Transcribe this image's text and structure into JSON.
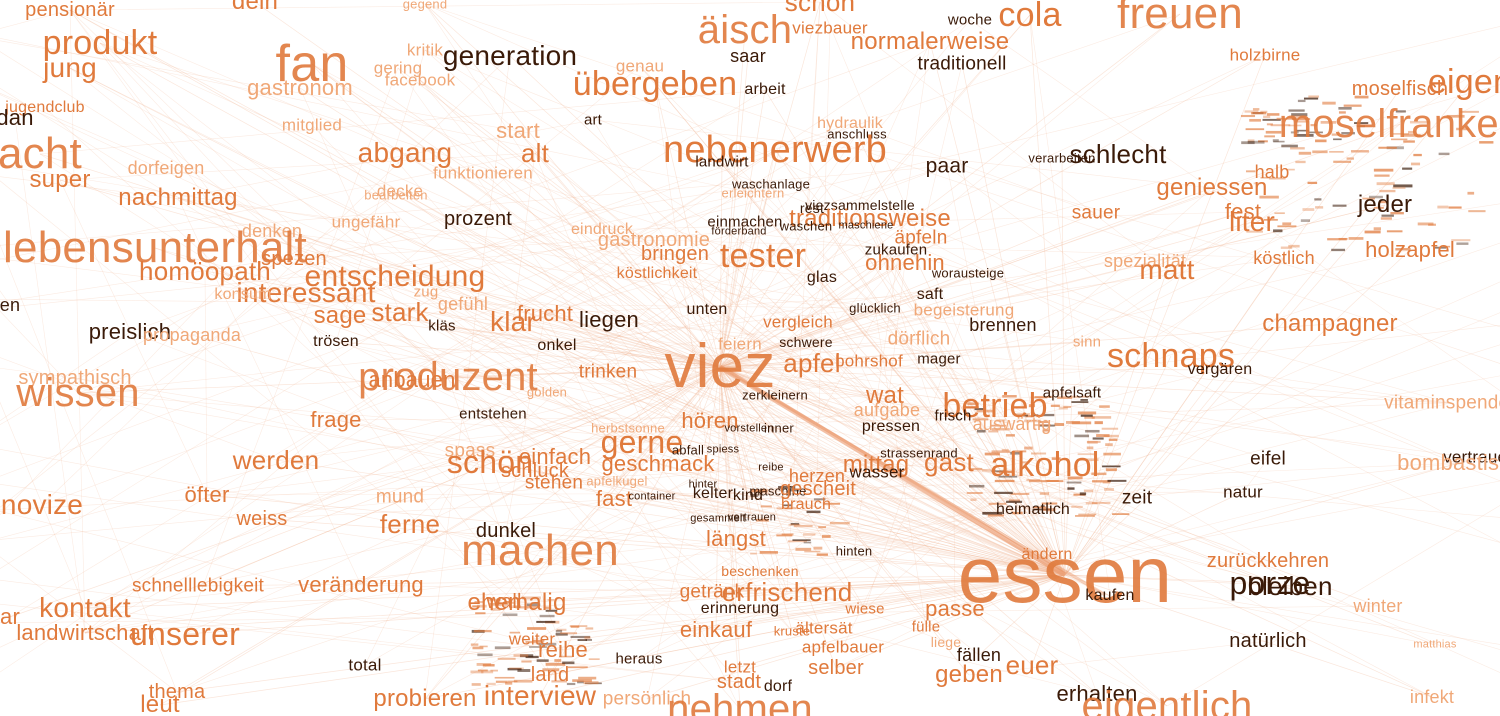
{
  "colors": {
    "accent": "#e07a3c",
    "accent_light": "#f0a878",
    "dark": "#3a1a08",
    "edge": "#f2b797",
    "edge_strong": "#e98e5c"
  },
  "hubs": [
    "viez",
    "essen"
  ],
  "words": [
    {
      "t": "pensionär",
      "tone": "accent"
    },
    {
      "t": "dein",
      "tone": "accent"
    },
    {
      "t": "gegend",
      "tone": "light"
    },
    {
      "t": "schon",
      "tone": "accent"
    },
    {
      "t": "woche",
      "tone": "dark"
    },
    {
      "t": "cola",
      "tone": "accent"
    },
    {
      "t": "freuen",
      "tone": "accent"
    },
    {
      "t": "produkt",
      "tone": "accent"
    },
    {
      "t": "jung",
      "tone": "accent"
    },
    {
      "t": "fan",
      "tone": "accent"
    },
    {
      "t": "kritik",
      "tone": "light"
    },
    {
      "t": "generation",
      "tone": "dark"
    },
    {
      "t": "gering",
      "tone": "light"
    },
    {
      "t": "facebook",
      "tone": "light"
    },
    {
      "t": "äisch",
      "tone": "accent"
    },
    {
      "t": "viezbauer",
      "tone": "accent"
    },
    {
      "t": "normalerweise",
      "tone": "accent"
    },
    {
      "t": "saar",
      "tone": "dark"
    },
    {
      "t": "traditionell",
      "tone": "dark"
    },
    {
      "t": "holzbirne",
      "tone": "accent"
    },
    {
      "t": "gastronom",
      "tone": "light"
    },
    {
      "t": "genau",
      "tone": "light"
    },
    {
      "t": "übergeben",
      "tone": "accent"
    },
    {
      "t": "arbeit",
      "tone": "dark"
    },
    {
      "t": "moselfisch",
      "tone": "accent"
    },
    {
      "t": "eigen",
      "tone": "accent"
    },
    {
      "t": "jugendclub",
      "tone": "accent"
    },
    {
      "t": "mitglied",
      "tone": "light"
    },
    {
      "t": "hydraulik",
      "tone": "light"
    },
    {
      "t": "anschluss",
      "tone": "dark"
    },
    {
      "t": "moselfranken",
      "tone": "accent"
    },
    {
      "t": "start",
      "tone": "light"
    },
    {
      "t": "art",
      "tone": "dark"
    },
    {
      "t": "acht",
      "tone": "accent"
    },
    {
      "t": "abgang",
      "tone": "accent"
    },
    {
      "t": "alt",
      "tone": "accent"
    },
    {
      "t": "nebenerwerb",
      "tone": "accent"
    },
    {
      "t": "landwirt",
      "tone": "dark"
    },
    {
      "t": "verarbeiten",
      "tone": "dark"
    },
    {
      "t": "schlecht",
      "tone": "dark"
    },
    {
      "t": "dorfeigen",
      "tone": "light"
    },
    {
      "t": "paar",
      "tone": "dark"
    },
    {
      "t": "super",
      "tone": "accent"
    },
    {
      "t": "funktionieren",
      "tone": "light"
    },
    {
      "t": "halb",
      "tone": "accent"
    },
    {
      "t": "waschanlage",
      "tone": "dark"
    },
    {
      "t": "erleichtern",
      "tone": "light"
    },
    {
      "t": "nachmittag",
      "tone": "accent"
    },
    {
      "t": "decke",
      "tone": "light"
    },
    {
      "t": "bearbeiten",
      "tone": "light"
    },
    {
      "t": "geniessen",
      "tone": "accent"
    },
    {
      "t": "jeder",
      "tone": "dark"
    },
    {
      "t": "viezsammelstelle",
      "tone": "dark"
    },
    {
      "t": "rest",
      "tone": "dark"
    },
    {
      "t": "fest",
      "tone": "accent"
    },
    {
      "t": "sauer",
      "tone": "accent"
    },
    {
      "t": "liter",
      "tone": "accent"
    },
    {
      "t": "prozent",
      "tone": "dark"
    },
    {
      "t": "ungefähr",
      "tone": "light"
    },
    {
      "t": "traditionsweise",
      "tone": "accent"
    },
    {
      "t": "einmachen",
      "tone": "dark"
    },
    {
      "t": "waschen",
      "tone": "dark"
    },
    {
      "t": "maschiene",
      "tone": "dark"
    },
    {
      "t": "denken",
      "tone": "light"
    },
    {
      "t": "eindruck",
      "tone": "light"
    },
    {
      "t": "förderband",
      "tone": "dark"
    },
    {
      "t": "äpfeln",
      "tone": "accent"
    },
    {
      "t": "holzapfel",
      "tone": "accent"
    },
    {
      "t": "lebensunterhalt",
      "tone": "accent"
    },
    {
      "t": "gastronomie",
      "tone": "light"
    },
    {
      "t": "zukaufen",
      "tone": "dark"
    },
    {
      "t": "spezialität",
      "tone": "light"
    },
    {
      "t": "köstlich",
      "tone": "accent"
    },
    {
      "t": "homöopath",
      "tone": "accent"
    },
    {
      "t": "spezen",
      "tone": "accent"
    },
    {
      "t": "bringen",
      "tone": "accent"
    },
    {
      "t": "tester",
      "tone": "accent"
    },
    {
      "t": "ohnehin",
      "tone": "accent"
    },
    {
      "t": "matt",
      "tone": "accent"
    },
    {
      "t": "entscheidung",
      "tone": "accent"
    },
    {
      "t": "köstlichkeit",
      "tone": "accent"
    },
    {
      "t": "glas",
      "tone": "dark"
    },
    {
      "t": "worausteige",
      "tone": "dark"
    },
    {
      "t": "interessant",
      "tone": "accent"
    },
    {
      "t": "konsum",
      "tone": "light"
    },
    {
      "t": "zug",
      "tone": "light"
    },
    {
      "t": "saft",
      "tone": "dark"
    },
    {
      "t": "gefühl",
      "tone": "light"
    },
    {
      "t": "frucht",
      "tone": "accent"
    },
    {
      "t": "glücklich",
      "tone": "dark"
    },
    {
      "t": "begeisterung",
      "tone": "light"
    },
    {
      "t": "champagner",
      "tone": "accent"
    },
    {
      "t": "sage",
      "tone": "accent"
    },
    {
      "t": "stark",
      "tone": "accent"
    },
    {
      "t": "klar",
      "tone": "accent"
    },
    {
      "t": "liegen",
      "tone": "dark"
    },
    {
      "t": "unten",
      "tone": "dark"
    },
    {
      "t": "vergleich",
      "tone": "accent"
    },
    {
      "t": "brennen",
      "tone": "dark"
    },
    {
      "t": "preislich",
      "tone": "dark"
    },
    {
      "t": "propaganda",
      "tone": "light"
    },
    {
      "t": "kläs",
      "tone": "dark"
    },
    {
      "t": "trösen",
      "tone": "dark"
    },
    {
      "t": "feiern",
      "tone": "light"
    },
    {
      "t": "dörflich",
      "tone": "light"
    },
    {
      "t": "onkel",
      "tone": "dark"
    },
    {
      "t": "schwere",
      "tone": "dark"
    },
    {
      "t": "sinn",
      "tone": "light"
    },
    {
      "t": "schnaps",
      "tone": "accent"
    },
    {
      "t": "viez",
      "tone": "accent"
    },
    {
      "t": "apfel",
      "tone": "accent"
    },
    {
      "t": "bohrshof",
      "tone": "accent"
    },
    {
      "t": "mager",
      "tone": "dark"
    },
    {
      "t": "sympathisch",
      "tone": "light"
    },
    {
      "t": "produzent",
      "tone": "accent"
    },
    {
      "t": "anbauen",
      "tone": "accent"
    },
    {
      "t": "trinken",
      "tone": "accent"
    },
    {
      "t": "vergären",
      "tone": "dark"
    },
    {
      "t": "wissen",
      "tone": "accent"
    },
    {
      "t": "wat",
      "tone": "accent"
    },
    {
      "t": "apfelsaft",
      "tone": "dark"
    },
    {
      "t": "golden",
      "tone": "light"
    },
    {
      "t": "zerkleinern",
      "tone": "dark"
    },
    {
      "t": "vitaminspender",
      "tone": "light"
    },
    {
      "t": "aufgabe",
      "tone": "light"
    },
    {
      "t": "betrieb",
      "tone": "accent"
    },
    {
      "t": "frage",
      "tone": "accent"
    },
    {
      "t": "entstehen",
      "tone": "dark"
    },
    {
      "t": "hören",
      "tone": "accent"
    },
    {
      "t": "herbstsonne",
      "tone": "light"
    },
    {
      "t": "frisch",
      "tone": "dark"
    },
    {
      "t": "auswärtig",
      "tone": "light"
    },
    {
      "t": "pressen",
      "tone": "dark"
    },
    {
      "t": "vorstellen",
      "tone": "dark"
    },
    {
      "t": "inner",
      "tone": "dark"
    },
    {
      "t": "gerne",
      "tone": "accent"
    },
    {
      "t": "spass",
      "tone": "light"
    },
    {
      "t": "einfach",
      "tone": "accent"
    },
    {
      "t": "abfall",
      "tone": "dark"
    },
    {
      "t": "spiess",
      "tone": "dark"
    },
    {
      "t": "strassenrand",
      "tone": "dark"
    },
    {
      "t": "gast",
      "tone": "accent"
    },
    {
      "t": "werden",
      "tone": "accent"
    },
    {
      "t": "schön",
      "tone": "accent"
    },
    {
      "t": "geschmack",
      "tone": "accent"
    },
    {
      "t": "mittag",
      "tone": "accent"
    },
    {
      "t": "alkohol",
      "tone": "accent"
    },
    {
      "t": "eifel",
      "tone": "dark"
    },
    {
      "t": "vertrauen",
      "tone": "dark"
    },
    {
      "t": "schluck",
      "tone": "accent"
    },
    {
      "t": "reibe",
      "tone": "dark"
    },
    {
      "t": "herzen",
      "tone": "accent"
    },
    {
      "t": "wasser",
      "tone": "dark"
    },
    {
      "t": "bombastisch",
      "tone": "light"
    },
    {
      "t": "stehen",
      "tone": "accent"
    },
    {
      "t": "apfelkugel",
      "tone": "light"
    },
    {
      "t": "hinter",
      "tone": "dark"
    },
    {
      "t": "öfter",
      "tone": "accent"
    },
    {
      "t": "mund",
      "tone": "light"
    },
    {
      "t": "fast",
      "tone": "accent"
    },
    {
      "t": "container",
      "tone": "dark"
    },
    {
      "t": "kelter",
      "tone": "dark"
    },
    {
      "t": "kind",
      "tone": "dark"
    },
    {
      "t": "maschine",
      "tone": "dark"
    },
    {
      "t": "gescheit",
      "tone": "accent"
    },
    {
      "t": "heimatlich",
      "tone": "dark"
    },
    {
      "t": "zeit",
      "tone": "dark"
    },
    {
      "t": "natur",
      "tone": "dark"
    },
    {
      "t": "novize",
      "tone": "accent"
    },
    {
      "t": "brauch",
      "tone": "accent"
    },
    {
      "t": "weiss",
      "tone": "accent"
    },
    {
      "t": "ferne",
      "tone": "accent"
    },
    {
      "t": "dunkel",
      "tone": "dark"
    },
    {
      "t": "gesammelt",
      "tone": "dark"
    },
    {
      "t": "vertrauen2",
      "tone": "dark"
    },
    {
      "t": "längst",
      "tone": "accent"
    },
    {
      "t": "hinten",
      "tone": "dark"
    },
    {
      "t": "machen",
      "tone": "accent"
    },
    {
      "t": "ändern",
      "tone": "accent"
    },
    {
      "t": "zurückkehren",
      "tone": "accent"
    },
    {
      "t": "essen",
      "tone": "accent"
    },
    {
      "t": "porze",
      "tone": "dark"
    },
    {
      "t": "schnelllebigkeit",
      "tone": "accent"
    },
    {
      "t": "veränderung",
      "tone": "accent"
    },
    {
      "t": "beschenken",
      "tone": "accent"
    },
    {
      "t": "bleiben",
      "tone": "dark"
    },
    {
      "t": "kaufen",
      "tone": "dark"
    },
    {
      "t": "getränk",
      "tone": "accent"
    },
    {
      "t": "erfrischend",
      "tone": "accent"
    },
    {
      "t": "wall",
      "tone": "accent"
    },
    {
      "t": "ehemalig",
      "tone": "accent"
    },
    {
      "t": "kontakt",
      "tone": "accent"
    },
    {
      "t": "erinnerung",
      "tone": "dark"
    },
    {
      "t": "wiese",
      "tone": "accent"
    },
    {
      "t": "passe",
      "tone": "accent"
    },
    {
      "t": "winter",
      "tone": "light"
    },
    {
      "t": "landwirtschaft",
      "tone": "accent"
    },
    {
      "t": "unserer",
      "tone": "accent"
    },
    {
      "t": "einkauf",
      "tone": "accent"
    },
    {
      "t": "kruste",
      "tone": "accent"
    },
    {
      "t": "ältersät",
      "tone": "accent"
    },
    {
      "t": "fülle",
      "tone": "accent"
    },
    {
      "t": "natürlich",
      "tone": "dark"
    },
    {
      "t": "weiter",
      "tone": "accent"
    },
    {
      "t": "reihe",
      "tone": "accent"
    },
    {
      "t": "apfelbauer",
      "tone": "accent"
    },
    {
      "t": "liege",
      "tone": "light"
    },
    {
      "t": "fällen",
      "tone": "dark"
    },
    {
      "t": "total",
      "tone": "dark"
    },
    {
      "t": "land",
      "tone": "accent"
    },
    {
      "t": "heraus",
      "tone": "dark"
    },
    {
      "t": "letzt",
      "tone": "accent"
    },
    {
      "t": "selber",
      "tone": "accent"
    },
    {
      "t": "euer",
      "tone": "accent"
    },
    {
      "t": "geben",
      "tone": "accent"
    },
    {
      "t": "matthias",
      "tone": "light"
    },
    {
      "t": "thema",
      "tone": "accent"
    },
    {
      "t": "stadt",
      "tone": "accent"
    },
    {
      "t": "dorf",
      "tone": "dark"
    },
    {
      "t": "leut",
      "tone": "accent"
    },
    {
      "t": "probieren",
      "tone": "accent"
    },
    {
      "t": "interview",
      "tone": "accent"
    },
    {
      "t": "persönlich",
      "tone": "light"
    },
    {
      "t": "nehmen",
      "tone": "accent"
    },
    {
      "t": "erhalten",
      "tone": "dark"
    },
    {
      "t": "eigentlich",
      "tone": "accent"
    },
    {
      "t": "infekt",
      "tone": "light"
    },
    {
      "t": "dan",
      "tone": "dark"
    },
    {
      "t": "en",
      "tone": "dark"
    },
    {
      "t": "ar",
      "tone": "accent"
    }
  ]
}
